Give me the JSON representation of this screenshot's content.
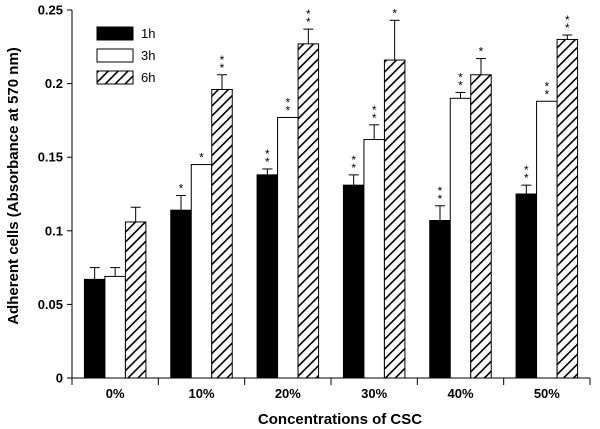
{
  "chart_data": {
    "type": "bar",
    "xlabel": "Concentrations of CSC",
    "ylabel": "Adherent cells (Absorbance at 570 nm)",
    "categories": [
      "0%",
      "10%",
      "20%",
      "30%",
      "40%",
      "50%"
    ],
    "ylim": [
      0,
      0.25
    ],
    "yticks": [
      "0",
      "0.05",
      "0.1",
      "0.15",
      "0.2",
      "0.25"
    ],
    "grid": false,
    "legend_position": "top-left",
    "series": [
      {
        "name": "1h",
        "fill": "solid-black",
        "values": [
          0.067,
          0.114,
          0.138,
          0.131,
          0.107,
          0.125
        ],
        "errors": [
          0.008,
          0.01,
          0.004,
          0.007,
          0.01,
          0.006
        ],
        "significance": [
          "",
          "*",
          "**",
          "**",
          "**",
          "**"
        ]
      },
      {
        "name": "3h",
        "fill": "white",
        "values": [
          0.069,
          0.145,
          0.177,
          0.162,
          0.19,
          0.188
        ],
        "errors": [
          0.006,
          0,
          0,
          0.01,
          0.004,
          0
        ],
        "significance": [
          "",
          "*",
          "**",
          "**",
          "**",
          "**"
        ]
      },
      {
        "name": "6h",
        "fill": "diagonal-hatch",
        "values": [
          0.106,
          0.196,
          0.227,
          0.216,
          0.206,
          0.23
        ],
        "errors": [
          0.01,
          0.01,
          0.01,
          0.027,
          0.011,
          0.003
        ],
        "significance": [
          "",
          "**",
          "**",
          "*",
          "*",
          "**"
        ]
      }
    ]
  }
}
